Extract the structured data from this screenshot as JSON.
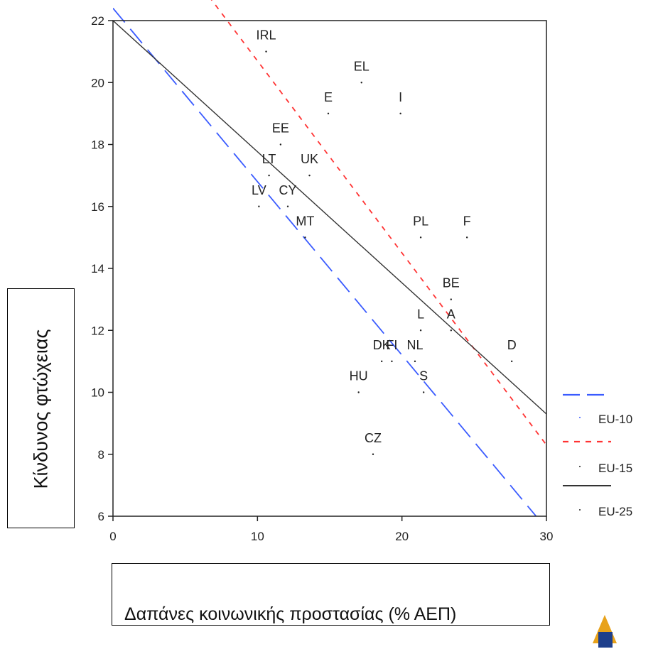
{
  "chart_data": {
    "type": "scatter",
    "title": "",
    "xlabel": "Δαπάνες κοινωνικής προστασίας (% ΑΕΠ)",
    "ylabel": "Κίνδυνος φτώχειας",
    "xlim": [
      0,
      30
    ],
    "ylim": [
      6,
      22
    ],
    "x_ticks": [
      "0",
      "10",
      "20",
      "30"
    ],
    "y_ticks": [
      "6",
      "8",
      "10",
      "12",
      "14",
      "16",
      "18",
      "20",
      "22"
    ],
    "points": [
      {
        "label": "IRL",
        "x": 10.6,
        "y": 21
      },
      {
        "label": "EL",
        "x": 17.2,
        "y": 20
      },
      {
        "label": "E",
        "x": 14.9,
        "y": 19
      },
      {
        "label": "I",
        "x": 19.9,
        "y": 19
      },
      {
        "label": "EE",
        "x": 11.6,
        "y": 18
      },
      {
        "label": "LT",
        "x": 10.8,
        "y": 17
      },
      {
        "label": "UK",
        "x": 13.6,
        "y": 17
      },
      {
        "label": "LV",
        "x": 10.1,
        "y": 16
      },
      {
        "label": "CY",
        "x": 12.1,
        "y": 16
      },
      {
        "label": "MT",
        "x": 13.3,
        "y": 15
      },
      {
        "label": "PL",
        "x": 21.3,
        "y": 15
      },
      {
        "label": "F",
        "x": 24.5,
        "y": 15
      },
      {
        "label": "BE",
        "x": 23.4,
        "y": 13
      },
      {
        "label": "L",
        "x": 21.3,
        "y": 12
      },
      {
        "label": "A",
        "x": 23.4,
        "y": 12
      },
      {
        "label": "DK",
        "x": 18.6,
        "y": 11
      },
      {
        "label": "FI",
        "x": 19.3,
        "y": 11
      },
      {
        "label": "NL",
        "x": 20.9,
        "y": 11
      },
      {
        "label": "D",
        "x": 27.6,
        "y": 11
      },
      {
        "label": "HU",
        "x": 17.0,
        "y": 10
      },
      {
        "label": "S",
        "x": 21.5,
        "y": 10
      },
      {
        "label": "CZ",
        "x": 18.0,
        "y": 8
      }
    ],
    "lines": [
      {
        "legend": "EU-10",
        "style": "dashed",
        "color": "#3a5bff",
        "x1": 0,
        "y1": 22.4,
        "x2": 30,
        "y2": 5.6
      },
      {
        "legend": "EU-15",
        "style": "dotted",
        "color": "#ff3333",
        "x1": 0,
        "y1": 26.9,
        "x2": 30,
        "y2": 8.3
      },
      {
        "legend": "EU-25",
        "style": "solid",
        "color": "#333333",
        "x1": 0,
        "y1": 22.0,
        "x2": 30,
        "y2": 9.3
      }
    ],
    "legend": {
      "position": "right",
      "entries": [
        "EU-10",
        "EU-15",
        "EU-25"
      ]
    }
  }
}
